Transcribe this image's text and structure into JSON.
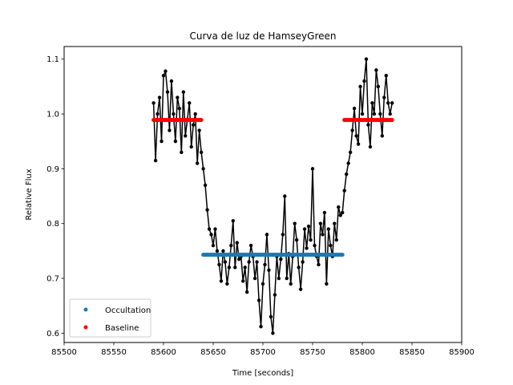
{
  "chart_data": {
    "type": "scatter",
    "title": "Curva de luz de HamseyGreen",
    "xlabel": "Time [seconds]",
    "ylabel": "Relative Flux",
    "xlim": [
      85500,
      85900
    ],
    "ylim": [
      0.583,
      1.123
    ],
    "xticks": [
      85500,
      85550,
      85600,
      85650,
      85700,
      85750,
      85800,
      85850,
      85900
    ],
    "xtick_labels": [
      "85500",
      "85550",
      "85600",
      "85650",
      "85700",
      "85750",
      "85800",
      "85850",
      "85900"
    ],
    "yticks": [
      0.6,
      0.7,
      0.8,
      0.9,
      1.0,
      1.1
    ],
    "ytick_labels": [
      "0.6",
      "0.7",
      "0.8",
      "0.9",
      "1.0",
      "1.1"
    ],
    "grid": false,
    "legend_position": "lower-left",
    "series": [
      {
        "name": "",
        "style": "line-with-markers",
        "color": "#000000",
        "x": [
          85590,
          85592,
          85594,
          85596,
          85598,
          85600,
          85602,
          85604,
          85606,
          85608,
          85610,
          85612,
          85614,
          85616,
          85618,
          85620,
          85622,
          85624,
          85626,
          85628,
          85630,
          85632,
          85634,
          85636,
          85638,
          85640,
          85642,
          85644,
          85646,
          85648,
          85650,
          85652,
          85654,
          85656,
          85658,
          85660,
          85662,
          85664,
          85666,
          85668,
          85670,
          85672,
          85674,
          85676,
          85678,
          85680,
          85682,
          85684,
          85686,
          85688,
          85690,
          85692,
          85694,
          85696,
          85698,
          85700,
          85702,
          85704,
          85706,
          85708,
          85710,
          85712,
          85714,
          85716,
          85718,
          85720,
          85722,
          85724,
          85726,
          85728,
          85730,
          85732,
          85734,
          85736,
          85738,
          85740,
          85742,
          85744,
          85746,
          85748,
          85750,
          85752,
          85754,
          85756,
          85758,
          85760,
          85762,
          85764,
          85766,
          85768,
          85770,
          85772,
          85774,
          85776,
          85778,
          85780,
          85782,
          85784,
          85786,
          85788,
          85790,
          85792,
          85794,
          85796,
          85798,
          85800,
          85802,
          85804,
          85806,
          85808,
          85810,
          85812,
          85814,
          85816,
          85818,
          85820,
          85822,
          85824,
          85826,
          85828,
          85830
        ],
        "y": [
          1.02,
          0.915,
          1.0,
          1.03,
          0.95,
          1.07,
          1.078,
          1.04,
          0.97,
          1.06,
          1.0,
          0.95,
          1.03,
          1.01,
          0.93,
          1.04,
          0.96,
          0.99,
          1.02,
          0.94,
          0.98,
          1.0,
          0.91,
          0.97,
          0.93,
          0.9,
          0.87,
          0.825,
          0.79,
          0.78,
          0.76,
          0.79,
          0.75,
          0.725,
          0.695,
          0.75,
          0.73,
          0.69,
          0.72,
          0.76,
          0.805,
          0.72,
          0.765,
          0.735,
          0.74,
          0.695,
          0.72,
          0.675,
          0.73,
          0.76,
          0.74,
          0.7,
          0.73,
          0.66,
          0.612,
          0.69,
          0.725,
          0.78,
          0.715,
          0.63,
          0.6,
          0.67,
          0.74,
          0.7,
          0.735,
          0.78,
          0.85,
          0.7,
          0.745,
          0.69,
          0.74,
          0.8,
          0.77,
          0.72,
          0.68,
          0.73,
          0.79,
          0.755,
          0.795,
          0.77,
          0.9,
          0.76,
          0.74,
          0.725,
          0.8,
          0.78,
          0.82,
          0.69,
          0.79,
          0.76,
          0.74,
          0.8,
          0.77,
          0.83,
          0.815,
          0.82,
          0.86,
          0.89,
          0.91,
          0.93,
          0.97,
          1.01,
          0.96,
          0.945,
          1.05,
          1.0,
          1.06,
          1.1,
          0.98,
          0.94,
          1.02,
          1.0,
          1.08,
          1.05,
          1.0,
          0.96,
          1.03,
          1.07,
          1.02,
          1.0,
          1.02
        ]
      },
      {
        "name": "Occultation",
        "style": "markers",
        "color": "#1f77b4",
        "x_range": [
          85640,
          85780
        ],
        "y": 0.743
      },
      {
        "name": "Baseline",
        "style": "markers",
        "color": "#ff0000",
        "segments": [
          {
            "x_range": [
              85590,
              85638
            ],
            "y": 0.989
          },
          {
            "x_range": [
              85782,
              85830
            ],
            "y": 0.989
          }
        ]
      }
    ]
  }
}
